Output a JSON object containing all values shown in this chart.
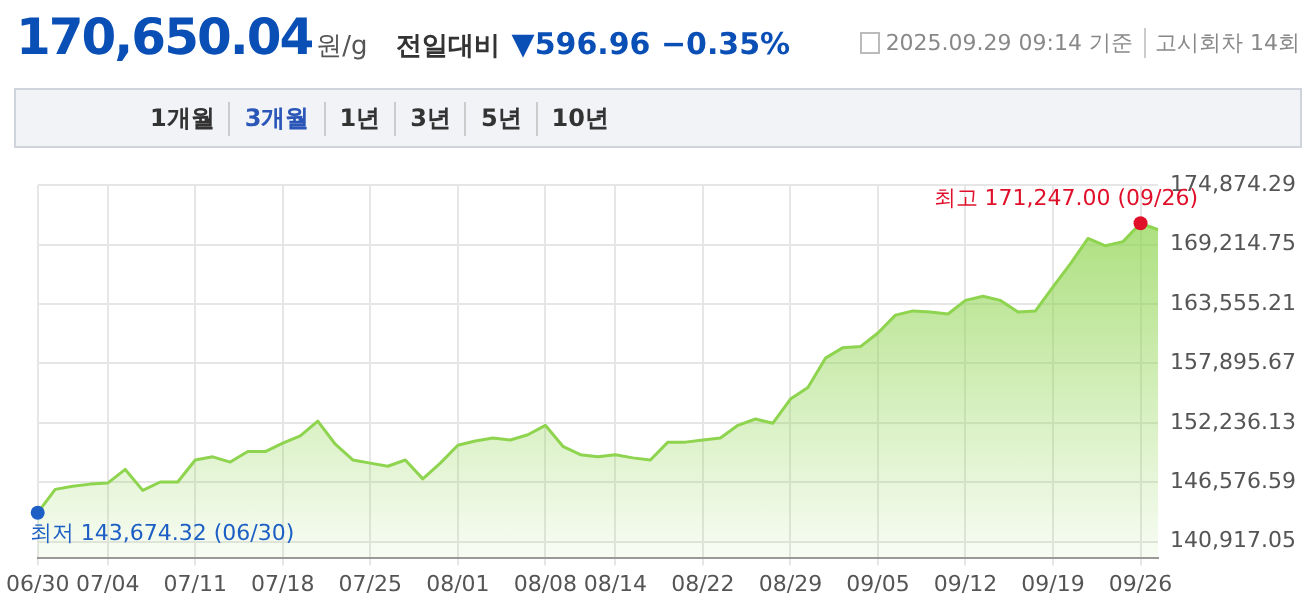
{
  "chart_data": {
    "type": "area",
    "title": "170,650.04",
    "subtitle": "원/g",
    "annotations": [
      "전일대비",
      "▼596.96 −0.35%",
      "2025.09.29 09:14 기준",
      "고시회차 14회",
      "1개월",
      "3개월",
      "1년",
      "3년",
      "5년",
      "10년",
      {
        "text": "최저 143,674.32 (06/30)",
        "x": "06/30",
        "y": 143674.32
      },
      {
        "text": "최고 171,247.00 (09/26)",
        "x": "09/26",
        "y": 171247
      }
    ],
    "categories": [
      "06/30",
      null,
      null,
      null,
      "07/04",
      null,
      null,
      null,
      null,
      "07/11",
      null,
      null,
      null,
      null,
      "07/18",
      null,
      null,
      null,
      null,
      "07/25",
      null,
      null,
      null,
      null,
      "08/01",
      null,
      null,
      null,
      null,
      "08/08",
      null,
      null,
      null,
      "08/14",
      null,
      null,
      null,
      null,
      "08/22",
      null,
      null,
      null,
      null,
      "08/29",
      null,
      null,
      null,
      null,
      "09/05",
      null,
      null,
      null,
      null,
      "09/12",
      null,
      null,
      null,
      null,
      "09/19",
      null,
      null,
      null,
      null,
      "09/26",
      null
    ],
    "series": [
      {
        "color": "#8ed44f",
        "values": [
          143674.32,
          145900,
          146200,
          146400,
          146500,
          147800,
          145800,
          146600,
          146600,
          148700,
          149000,
          148500,
          149500,
          149500,
          150300,
          151000,
          152400,
          150200,
          148700,
          148400,
          148100,
          148700,
          146900,
          148400,
          150100,
          150500,
          150800,
          150600,
          151100,
          152000,
          150000,
          149200,
          149000,
          149200,
          148900,
          148700,
          150400,
          150400,
          150600,
          150800,
          152000,
          152600,
          152200,
          154500,
          155600,
          158400,
          159400,
          159500,
          160800,
          162500,
          162900,
          162800,
          162600,
          163900,
          164300,
          163900,
          162800,
          162900,
          165200,
          167400,
          169800,
          169100,
          169500,
          171247,
          170650.04
        ]
      }
    ],
    "ylim": [
      139400,
      174874.29
    ],
    "yticks": [
      {
        "value": 140917.05,
        "label": "140,917.05"
      },
      {
        "value": 146576.59,
        "label": "146,576.59"
      },
      {
        "value": 152236.13,
        "label": "152,236.13"
      },
      {
        "value": 157895.67,
        "label": "157,895.67"
      },
      {
        "value": 163555.21,
        "label": "163,555.21"
      },
      {
        "value": 169214.75,
        "label": "169,214.75"
      },
      {
        "value": 174874.29,
        "label": "174,874.29"
      }
    ],
    "grid": true,
    "legend": false,
    "marker": "none"
  }
}
